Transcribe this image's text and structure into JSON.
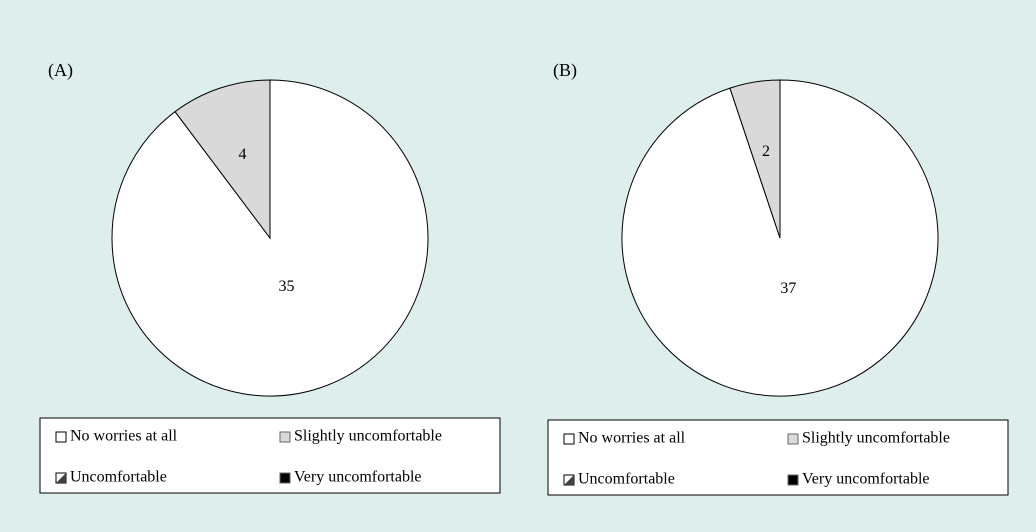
{
  "chart_data": [
    {
      "type": "pie",
      "title": "(A)",
      "categories": [
        "No worries at all",
        "Slightly uncomfortable",
        "Uncomfortable",
        "Very uncomfortable"
      ],
      "values": [
        35,
        4,
        0,
        0
      ],
      "colors": [
        "#ffffff",
        "#d9d9d9",
        "#404040",
        "#000000"
      ]
    },
    {
      "type": "pie",
      "title": "(B)",
      "categories": [
        "No worries at all",
        "Slightly uncomfortable",
        "Uncomfortable",
        "Very uncomfortable"
      ],
      "values": [
        37,
        2,
        0,
        0
      ],
      "colors": [
        "#ffffff",
        "#d9d9d9",
        "#404040",
        "#000000"
      ]
    }
  ]
}
